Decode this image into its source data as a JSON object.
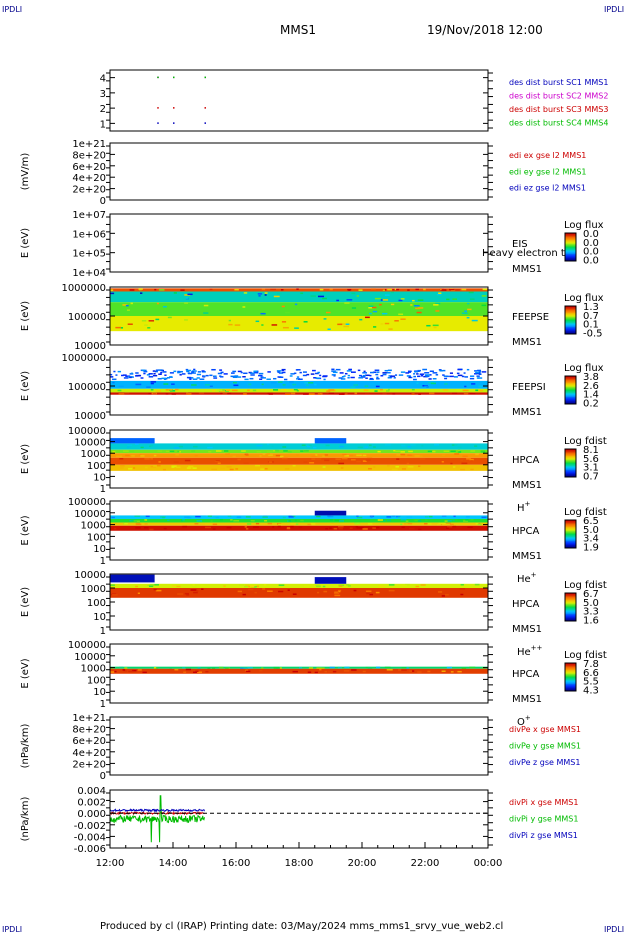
{
  "header": {
    "corner_left": "IPDLI",
    "corner_right": "IPDLI",
    "title": "MMS1",
    "date": "19/Nov/2018 12:00"
  },
  "footer": {
    "corner_left": "IPDLI",
    "corner_right": "IPDLI",
    "credit": "Produced by cl (IRAP)   Printing date: 03/May/2024   mms_mms1_srvy_vue_web2.cl"
  },
  "time_axis": {
    "ticks": [
      "12:00",
      "14:00",
      "16:00",
      "18:00",
      "20:00",
      "22:00",
      "00:00"
    ]
  },
  "panels": [
    {
      "ylabel": "",
      "ticks": [
        "4",
        "3",
        "2",
        "1"
      ],
      "legend": [
        {
          "text": "des dist burst SC1 MMS1",
          "color": "#0000bb"
        },
        {
          "text": "des dist burst SC2 MMS2",
          "color": "#cc00cc"
        },
        {
          "text": "des dist burst SC3 MMS3",
          "color": "#cc0000"
        },
        {
          "text": "des dist burst SC4 MMS4",
          "color": "#00bb00"
        }
      ]
    },
    {
      "ylabel": "(mV/m)",
      "ticks": [
        "1e+21",
        "8e+20",
        "6e+20",
        "4e+20",
        "2e+20",
        "0"
      ],
      "legend": [
        {
          "text": "edi ex gse l2 MMS1",
          "color": "#cc0000"
        },
        {
          "text": "edi ey gse l2 MMS1",
          "color": "#00bb00"
        },
        {
          "text": "edi ez gse l2 MMS1",
          "color": "#0000bb"
        }
      ]
    },
    {
      "ylabel": "E (eV)",
      "ticks": [
        "1e+07",
        "1e+06",
        "1e+05",
        "1e+04"
      ],
      "labels": [
        "EIS",
        "MMS1"
      ],
      "overlay": "Heavy electron to",
      "colorbar_title": "Log flux",
      "colorbar_ticks": [
        "0.0",
        "0.0",
        "0.0",
        "0.0"
      ]
    },
    {
      "ylabel": "E (eV)",
      "ticks": [
        "1000000",
        "100000",
        "10000"
      ],
      "labels": [
        "FEEPSE",
        "MMS1"
      ],
      "colorbar_title": "Log flux",
      "colorbar_ticks": [
        "1.3",
        "0.7",
        "0.1",
        "-0.5"
      ]
    },
    {
      "ylabel": "E (eV)",
      "ticks": [
        "1000000",
        "100000",
        "10000"
      ],
      "labels": [
        "FEEPSI",
        "MMS1"
      ],
      "colorbar_title": "Log flux",
      "colorbar_ticks": [
        "3.8",
        "2.6",
        "1.4",
        "0.2"
      ]
    },
    {
      "ylabel": "E (eV)",
      "ticks": [
        "100000",
        "10000",
        "1000",
        "100",
        "10",
        "1"
      ],
      "labels": [
        "HPCA",
        "MMS1",
        "H+"
      ],
      "colorbar_title": "Log fdist",
      "colorbar_ticks": [
        "8.1",
        "5.6",
        "3.1",
        "0.7"
      ]
    },
    {
      "ylabel": "E (eV)",
      "ticks": [
        "100000",
        "10000",
        "1000",
        "100",
        "10",
        "1"
      ],
      "labels": [
        "HPCA",
        "MMS1",
        "He+"
      ],
      "colorbar_title": "Log fdist",
      "colorbar_ticks": [
        "6.5",
        "5.0",
        "3.4",
        "1.9"
      ]
    },
    {
      "ylabel": "E (eV)",
      "ticks": [
        "10000",
        "1000",
        "100",
        "10",
        "1"
      ],
      "labels": [
        "HPCA",
        "MMS1",
        "He++"
      ],
      "colorbar_title": "Log fdist",
      "colorbar_ticks": [
        "6.7",
        "5.0",
        "3.3",
        "1.6"
      ]
    },
    {
      "ylabel": "E (eV)",
      "ticks": [
        "100000",
        "10000",
        "1000",
        "100",
        "10",
        "1"
      ],
      "labels": [
        "HPCA",
        "MMS1",
        "O+"
      ],
      "colorbar_title": "Log fdist",
      "colorbar_ticks": [
        "7.8",
        "6.6",
        "5.5",
        "4.3"
      ]
    },
    {
      "ylabel": "(nPa/km)",
      "ticks": [
        "1e+21",
        "8e+20",
        "6e+20",
        "4e+20",
        "2e+20",
        "0"
      ],
      "legend": [
        {
          "text": "divPe x gse MMS1",
          "color": "#cc0000"
        },
        {
          "text": "divPe y gse MMS1",
          "color": "#00bb00"
        },
        {
          "text": "divPe z gse MMS1",
          "color": "#0000bb"
        }
      ]
    },
    {
      "ylabel": "(nPa/km)",
      "ticks": [
        "0.004",
        "0.002",
        "0.000",
        "-0.002",
        "-0.004",
        "-0.006"
      ],
      "legend": [
        {
          "text": "divPi x gse MMS1",
          "color": "#cc0000"
        },
        {
          "text": "divPi y gse MMS1",
          "color": "#00bb00"
        },
        {
          "text": "divPi z gse MMS1",
          "color": "#0000bb"
        }
      ]
    }
  ],
  "chart_data": [
    {
      "type": "scatter",
      "ylim": [
        0.5,
        4.5
      ],
      "x": [
        "13:30",
        "14:00",
        "15:00"
      ],
      "series": [
        {
          "name": "des dist burst SC1 MMS1",
          "y": 1
        },
        {
          "name": "des dist burst SC2 MMS2",
          "y": 4
        },
        {
          "name": "des dist burst SC3 MMS3",
          "y": 2
        },
        {
          "name": "des dist burst SC4 MMS4",
          "y": 4
        }
      ]
    },
    {
      "type": "line",
      "ylim": [
        0,
        1e+21
      ],
      "series": [
        {
          "name": "edi ex gse l2 MMS1",
          "values": []
        },
        {
          "name": "edi ey gse l2 MMS1",
          "values": []
        },
        {
          "name": "edi ez gse l2 MMS1",
          "values": []
        }
      ]
    },
    {
      "type": "heatmap",
      "ylim": [
        10000.0,
        10000000.0
      ],
      "log": true,
      "values": []
    },
    {
      "type": "heatmap",
      "ylim": [
        10000.0,
        1000000.0
      ],
      "log": true,
      "zlim": [
        -0.5,
        1.3
      ],
      "bands": [
        {
          "from": 700000,
          "to": 900000,
          "z": 1.1
        },
        {
          "from": 300000,
          "to": 700000,
          "z": 0.2
        },
        {
          "from": 100000,
          "to": 300000,
          "z": 0.5
        },
        {
          "from": 30000,
          "to": 100000,
          "z": 0.7
        }
      ]
    },
    {
      "type": "heatmap",
      "ylim": [
        10000.0,
        1000000.0
      ],
      "log": true,
      "zlim": [
        0.2,
        3.8
      ],
      "bands": [
        {
          "from": 150000,
          "to": 400000,
          "z": 0.9,
          "speckle": true
        },
        {
          "from": 80000,
          "to": 150000,
          "z": 1.3
        },
        {
          "from": 60000,
          "to": 80000,
          "z": 2.5
        },
        {
          "from": 50000,
          "to": 60000,
          "z": 3.7
        }
      ]
    },
    {
      "type": "heatmap",
      "ylim": [
        1,
        100000.0
      ],
      "log": true,
      "zlim": [
        0.7,
        8.1
      ],
      "bands": [
        {
          "from": 2000,
          "to": 7000,
          "z": 3.4
        },
        {
          "from": 1000,
          "to": 2000,
          "z": 5.0
        },
        {
          "from": 400,
          "to": 1000,
          "z": 6.5
        },
        {
          "from": 100,
          "to": 400,
          "z": 7.3
        },
        {
          "from": 30,
          "to": 100,
          "z": 6.1
        }
      ],
      "bursts": [
        {
          "t0": "12:00",
          "t1": "13:25",
          "from": 7000,
          "to": 20000,
          "z": 2.3
        },
        {
          "t0": "18:30",
          "t1": "19:30",
          "from": 7000,
          "to": 20000,
          "z": 2.3
        }
      ]
    },
    {
      "type": "heatmap",
      "ylim": [
        1,
        100000.0
      ],
      "log": true,
      "zlim": [
        1.9,
        6.5
      ],
      "bands": [
        {
          "from": 3000,
          "to": 6000,
          "z": 3.4
        },
        {
          "from": 1500,
          "to": 3000,
          "z": 4.3
        },
        {
          "from": 800,
          "to": 1500,
          "z": 5.2
        },
        {
          "from": 300,
          "to": 800,
          "z": 6.4
        }
      ],
      "bursts": [
        {
          "t0": "18:30",
          "t1": "19:30",
          "from": 6000,
          "to": 15000,
          "z": 2.1
        }
      ]
    },
    {
      "type": "heatmap",
      "ylim": [
        1,
        10000.0
      ],
      "log": true,
      "zlim": [
        1.6,
        6.7
      ],
      "bands": [
        {
          "from": 1000,
          "to": 2000,
          "z": 4.9
        },
        {
          "from": 200,
          "to": 1000,
          "z": 6.3
        }
      ],
      "bursts": [
        {
          "t0": "12:00",
          "t1": "13:25",
          "from": 2500,
          "to": 9000,
          "z": 1.9
        },
        {
          "t0": "18:30",
          "t1": "19:30",
          "from": 2000,
          "to": 6000,
          "z": 1.9
        }
      ]
    },
    {
      "type": "heatmap",
      "ylim": [
        1,
        100000.0
      ],
      "log": true,
      "zlim": [
        4.3,
        7.8
      ],
      "bands": [
        {
          "from": 800,
          "to": 1200,
          "z": 5.9
        },
        {
          "from": 300,
          "to": 800,
          "z": 7.5
        }
      ]
    },
    {
      "type": "line",
      "ylim": [
        0,
        1e+21
      ],
      "series": [
        {
          "name": "divPe x gse MMS1",
          "values": []
        },
        {
          "name": "divPe y gse MMS1",
          "values": []
        },
        {
          "name": "divPe z gse MMS1",
          "values": []
        }
      ]
    },
    {
      "type": "line",
      "ylim": [
        -0.006,
        0.004
      ],
      "x_range": [
        "12:00",
        "15:00"
      ],
      "series": [
        {
          "name": "divPi x gse MMS1",
          "values": [
            -0.0005,
            0.0005
          ]
        },
        {
          "name": "divPi y gse MMS1",
          "values": [
            -0.005,
            0.003
          ]
        },
        {
          "name": "divPi z gse MMS1",
          "values": [
            0.0,
            0.001
          ]
        }
      ]
    }
  ]
}
